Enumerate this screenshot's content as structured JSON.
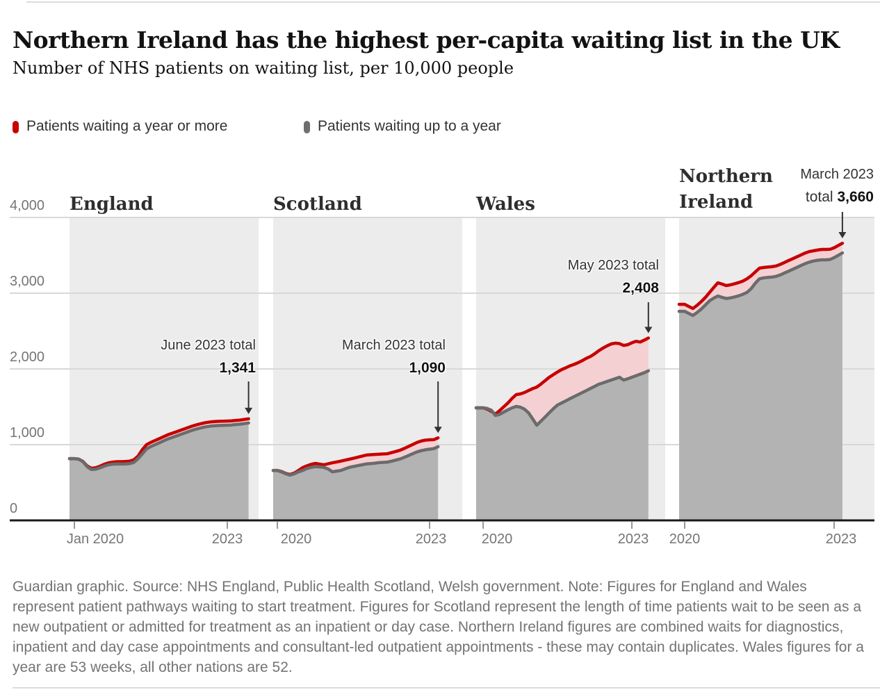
{
  "page": {
    "title": "Northern Ireland has the highest per-capita waiting list in the UK",
    "subtitle": "Number of NHS patients on waiting list, per 10,000 people"
  },
  "legend": {
    "items": [
      {
        "label": "Patients waiting a year or more",
        "color": "#c70000"
      },
      {
        "label": "Patients waiting up to a year",
        "color": "#6e6e6e"
      }
    ]
  },
  "footer": {
    "text": "Guardian graphic. Source: NHS England, Public Health Scotland, Welsh government. Note: Figures for England and Wales represent patient pathways waiting to start treatment. Figures for Scotland represent the length of time patients wait to be seen as a new outpatient or admitted for treatment as an inpatient or day case. Northern Ireland figures are combined waits for diagnostics, inpatient and day case appointments and consultant-led outpatient appointments - these may contain duplicates. Wales figures for a year are 53 weeks, all other nations are 52."
  },
  "chart_data": {
    "type": "area",
    "title": "Number of NHS patients on waiting list, per 10,000 people",
    "series_legend": [
      "Patients waiting a year or more",
      "Patients waiting up to a year"
    ],
    "y_axis": {
      "range": [
        0,
        4000
      ],
      "ticks": [
        {
          "value": 0,
          "label": "0"
        },
        {
          "value": 1000,
          "label": "1,000"
        },
        {
          "value": 2000,
          "label": "2,000"
        },
        {
          "value": 3000,
          "label": "3,000"
        },
        {
          "value": 4000,
          "label": "4,000"
        }
      ]
    },
    "colors": {
      "total_line": "#c70000",
      "year_plus_fill": "#f4d0d3",
      "under_year_fill": "#b3b3b3",
      "under_year_line": "#6b6b6b",
      "panel_bg": "#ececec",
      "gridline": "#d8d8d8",
      "axis_line": "#1a1a1a",
      "tick": "#999999",
      "arrow": "#333333"
    },
    "panels": [
      {
        "title": "England",
        "x_tick_labels": [
          "Jan 2020",
          "2023"
        ],
        "annotation": {
          "line1": "June 2023 total",
          "value_prefix": "",
          "value": "1,341"
        },
        "total": [
          816,
          810,
          780,
          720,
          688,
          695,
          715,
          740,
          760,
          770,
          775,
          775,
          778,
          782,
          800,
          850,
          935,
          1000,
          1030,
          1055,
          1080,
          1105,
          1130,
          1150,
          1170,
          1190,
          1210,
          1230,
          1250,
          1265,
          1280,
          1292,
          1300,
          1305,
          1308,
          1310,
          1312,
          1315,
          1320,
          1325,
          1333,
          1341
        ],
        "under_year": [
          816,
          808,
          776,
          710,
          672,
          676,
          694,
          716,
          734,
          742,
          745,
          744,
          746,
          750,
          766,
          816,
          880,
          944,
          975,
          1000,
          1025,
          1050,
          1075,
          1095,
          1115,
          1135,
          1155,
          1175,
          1195,
          1210,
          1225,
          1237,
          1245,
          1250,
          1253,
          1255,
          1257,
          1260,
          1266,
          1271,
          1278,
          1286
        ]
      },
      {
        "title": "Scotland",
        "x_tick_labels": [
          "2020",
          "2023"
        ],
        "annotation": {
          "line1": "March 2023 total",
          "value_prefix": "",
          "value": "1,090"
        },
        "total": [
          660,
          645,
          620,
          606,
          625,
          660,
          697,
          720,
          740,
          752,
          743,
          734,
          748,
          761,
          772,
          783,
          795,
          807,
          820,
          834,
          848,
          862,
          867,
          871,
          874,
          877,
          880,
          895,
          910,
          926,
          950,
          976,
          1002,
          1028,
          1048,
          1060,
          1064,
          1066,
          1090
        ],
        "under_year": [
          658,
          640,
          615,
          598,
          615,
          640,
          660,
          685,
          700,
          710,
          706,
          700,
          680,
          642,
          650,
          660,
          680,
          700,
          712,
          723,
          734,
          745,
          750,
          755,
          762,
          766,
          770,
          782,
          796,
          810,
          832,
          856,
          880,
          905,
          920,
          932,
          940,
          948,
          973
        ]
      },
      {
        "title": "Wales",
        "x_tick_labels": [
          "2020",
          "2023"
        ],
        "annotation": {
          "line1": "May 2023 total",
          "value_prefix": "",
          "value": "2,408"
        },
        "total": [
          1486,
          1470,
          1440,
          1404,
          1450,
          1500,
          1550,
          1610,
          1661,
          1670,
          1688,
          1715,
          1740,
          1761,
          1800,
          1845,
          1890,
          1925,
          1960,
          1991,
          2015,
          2040,
          2060,
          2083,
          2110,
          2140,
          2165,
          2200,
          2240,
          2275,
          2305,
          2330,
          2340,
          2335,
          2310,
          2320,
          2345,
          2365,
          2355,
          2380,
          2408
        ],
        "under_year": [
          1486,
          1478,
          1455,
          1385,
          1400,
          1430,
          1460,
          1485,
          1505,
          1495,
          1470,
          1420,
          1340,
          1257,
          1310,
          1365,
          1420,
          1475,
          1523,
          1550,
          1578,
          1606,
          1634,
          1661,
          1688,
          1715,
          1743,
          1770,
          1798,
          1816,
          1835,
          1853,
          1872,
          1890,
          1853,
          1870,
          1890,
          1910,
          1930,
          1950,
          1975
        ]
      },
      {
        "title": "Northern Ireland",
        "x_tick_labels": [
          "2020",
          "2023"
        ],
        "annotation": {
          "line1": "March 2023",
          "value_prefix": "total ",
          "value": "3,660"
        },
        "total": [
          2853,
          2825,
          2798,
          2840,
          2890,
          2945,
          3010,
          3075,
          3138,
          3120,
          3101,
          3110,
          3125,
          3140,
          3160,
          3190,
          3230,
          3280,
          3330,
          3339,
          3345,
          3350,
          3360,
          3380,
          3405,
          3430,
          3455,
          3480,
          3505,
          3530,
          3550,
          3560,
          3570,
          3578,
          3578,
          3580,
          3600,
          3630,
          3660
        ],
        "under_year": [
          2761,
          2733,
          2706,
          2745,
          2790,
          2845,
          2900,
          2935,
          2963,
          2945,
          2930,
          2938,
          2950,
          2965,
          2985,
          3010,
          3060,
          3130,
          3190,
          3202,
          3208,
          3212,
          3222,
          3240,
          3265,
          3290,
          3315,
          3340,
          3365,
          3390,
          3410,
          3425,
          3435,
          3440,
          3440,
          3445,
          3470,
          3500,
          3532
        ]
      }
    ]
  }
}
